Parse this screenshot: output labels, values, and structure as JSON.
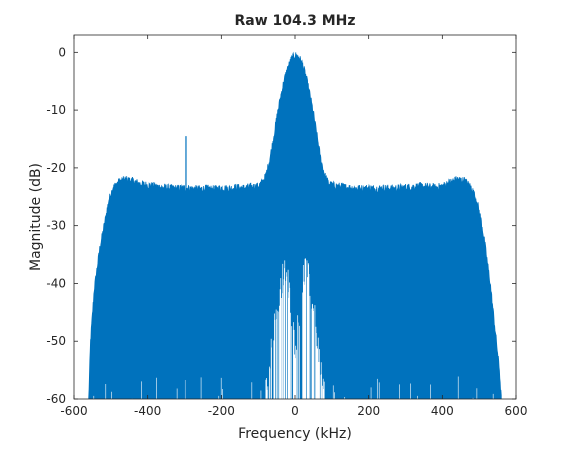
{
  "chart_data": {
    "type": "line",
    "title": "Raw 104.3 MHz",
    "xlabel": "Frequency (kHz)",
    "ylabel": "Magnitude (dB)",
    "xlim": [
      -600,
      600
    ],
    "ylim": [
      -60,
      3
    ],
    "xticks": [
      -600,
      -400,
      -200,
      0,
      200,
      400,
      600
    ],
    "yticks": [
      0,
      -10,
      -20,
      -30,
      -40,
      -50,
      -60
    ],
    "grid": false,
    "series": [
      {
        "color": "#0072bd",
        "envelope_max": {
          "x": [
            -560,
            -555,
            -545,
            -530,
            -515,
            -505,
            -495,
            -480,
            -460,
            -440,
            -420,
            -400,
            -380,
            -360,
            -340,
            -320,
            -300,
            -280,
            -260,
            -240,
            -220,
            -200,
            -180,
            -160,
            -140,
            -120,
            -100,
            -90,
            -80,
            -70,
            -60,
            -50,
            -40,
            -30,
            -20,
            -10,
            0,
            10,
            20,
            30,
            40,
            50,
            60,
            70,
            80,
            90,
            100,
            120,
            140,
            160,
            180,
            200,
            220,
            240,
            260,
            280,
            300,
            320,
            340,
            360,
            380,
            400,
            420,
            440,
            460,
            480,
            495,
            505,
            515,
            530,
            545,
            555,
            560
          ],
          "y": [
            -60,
            -50,
            -41,
            -34,
            -29,
            -25.5,
            -23.5,
            -22.5,
            -22,
            -22.3,
            -22.8,
            -23,
            -23.2,
            -23.4,
            -23.5,
            -23.6,
            -23.5,
            -23.6,
            -23.7,
            -23.6,
            -23.7,
            -23.5,
            -23.6,
            -23.4,
            -23.5,
            -23.3,
            -23.2,
            -22.6,
            -21.5,
            -19,
            -15.5,
            -11.5,
            -8,
            -5,
            -2.8,
            -1.2,
            -0.5,
            -0.8,
            -2,
            -4.2,
            -7.2,
            -10.5,
            -14.5,
            -18.5,
            -21.2,
            -22.6,
            -23,
            -23.2,
            -23.4,
            -23.5,
            -23.6,
            -23.5,
            -23.6,
            -23.5,
            -23.6,
            -23.5,
            -23.4,
            -23.3,
            -23.2,
            -23.3,
            -23.4,
            -23.2,
            -22.5,
            -22,
            -22.2,
            -23.5,
            -26,
            -29,
            -33,
            -40,
            -49,
            -55,
            -60
          ]
        },
        "envelope_min": {
          "x": [
            -80,
            -70,
            -60,
            -50,
            -40,
            -30,
            -20,
            -10,
            0,
            10,
            20,
            30,
            40,
            50,
            60,
            70,
            80
          ],
          "y": [
            -60,
            -56,
            -50,
            -46,
            -42,
            -39,
            -40,
            -46,
            -52,
            -47,
            -41,
            -38,
            -41,
            -45,
            -50,
            -55,
            -60
          ]
        },
        "spurs": [
          {
            "x": -296,
            "y": -14.5
          }
        ]
      }
    ]
  }
}
